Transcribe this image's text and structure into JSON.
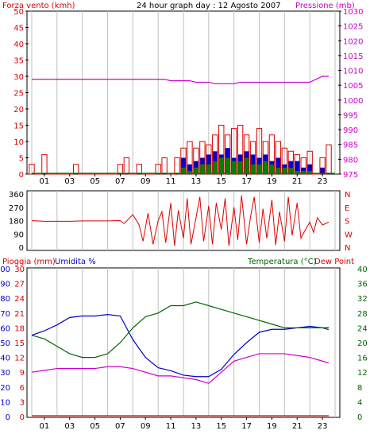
{
  "header": {
    "wind_title": "Forza vento (kmh)",
    "day_title": "24 hour graph day : 12 Agosto 2007",
    "pressure_title": "Pressione (mb)",
    "rain_title": "Pioggia (mm)",
    "humidity_title": "Umidita %",
    "temperature_title": "Temperatura (°C)",
    "dewpoint_title": "Dew Point"
  },
  "colors": {
    "frame": "#000000",
    "grid": "#c0c0c0",
    "wind": "#dd0000",
    "gust_blue": "#0000cc",
    "gust_green": "#008000",
    "pressure": "#cc00cc",
    "direction": "#dd0000",
    "rain": "#dd0000",
    "humidity": "#0000cc",
    "temperature": "#006600",
    "dewpoint": "#cc00cc"
  },
  "x_axis": {
    "tick_labels": [
      "01",
      "03",
      "05",
      "07",
      "09",
      "11",
      "13",
      "15",
      "17",
      "19",
      "21",
      "23"
    ]
  },
  "chart_data": [
    {
      "id": "wind_pressure",
      "type": "bar",
      "title": "24 hour graph day : 12 Agosto 2007",
      "ylabel": "Forza vento (kmh)",
      "y2label": "Pressione (mb)",
      "ylim": [
        0,
        50
      ],
      "y_ticks": [
        "0",
        "5",
        "10",
        "15",
        "20",
        "25",
        "30",
        "35",
        "40",
        "45",
        "50"
      ],
      "y2lim": [
        975,
        1030
      ],
      "y2_ticks": [
        "975",
        "980",
        "985",
        "990",
        "995",
        "1000",
        "1005",
        "1010",
        "1015",
        "1020",
        "1025",
        "1030"
      ],
      "hours": [
        0,
        0.5,
        1,
        1.5,
        2,
        2.5,
        3,
        3.5,
        4,
        4.5,
        5,
        5.5,
        6,
        6.5,
        7,
        7.5,
        8,
        8.5,
        9,
        9.5,
        10,
        10.5,
        11,
        11.5,
        12,
        12.5,
        13,
        13.5,
        14,
        14.5,
        15,
        15.5,
        16,
        16.5,
        17,
        17.5,
        18,
        18.5,
        19,
        19.5,
        20,
        20.5,
        21,
        21.5,
        22,
        22.5,
        23,
        23.5
      ],
      "series": [
        {
          "name": "Forza vento (kmh)",
          "values": [
            3,
            0,
            6,
            0,
            0,
            0,
            0,
            3,
            0,
            0,
            0,
            0,
            0,
            0,
            3,
            5,
            0,
            3,
            0,
            0,
            3,
            5,
            0,
            5,
            8,
            10,
            8,
            10,
            9,
            12,
            15,
            12,
            14,
            15,
            12,
            10,
            14,
            10,
            12,
            10,
            8,
            7,
            6,
            5,
            7,
            0,
            5,
            9
          ]
        },
        {
          "name": "Pressione (mb)",
          "values": [
            1007,
            1007,
            1007,
            1007,
            1007,
            1007,
            1007,
            1007,
            1007,
            1007,
            1007,
            1007,
            1007,
            1007,
            1007,
            1007,
            1007,
            1007,
            1007,
            1007,
            1007,
            1007,
            1006.5,
            1006.5,
            1006.5,
            1006.5,
            1006,
            1006,
            1006,
            1005.5,
            1005.5,
            1005.5,
            1005.5,
            1006,
            1006,
            1006,
            1006,
            1006,
            1006,
            1006,
            1006,
            1006,
            1006,
            1006,
            1006,
            1007,
            1008,
            1008
          ]
        }
      ],
      "gust_bands": [
        {
          "name": "blue",
          "values": [
            0,
            0,
            0,
            0,
            0,
            0,
            0,
            0,
            0,
            0,
            0,
            0,
            0,
            0,
            0,
            0,
            0,
            0,
            0,
            0,
            0,
            0,
            0,
            0,
            5,
            3,
            4,
            5,
            6,
            7,
            6,
            8,
            5,
            6,
            7,
            6,
            5,
            6,
            4,
            5,
            3,
            4,
            4,
            2,
            3,
            0,
            2,
            0
          ]
        },
        {
          "name": "green",
          "values": [
            0,
            0,
            0,
            0,
            0,
            0,
            0,
            0,
            0,
            0,
            0,
            0,
            0,
            0,
            0,
            0,
            0,
            0,
            0,
            0,
            0,
            0,
            0,
            0,
            2,
            1,
            2,
            3,
            3,
            4,
            5,
            5,
            4,
            4,
            5,
            3,
            3,
            4,
            3,
            2,
            2,
            2,
            1,
            1,
            1,
            0,
            0,
            0
          ]
        }
      ]
    },
    {
      "id": "direction",
      "type": "line",
      "ylabel": "",
      "ylim": [
        0,
        360
      ],
      "y_ticks": [
        "0",
        "90",
        "180",
        "270",
        "360"
      ],
      "y2_ticks": [
        "N",
        "E",
        "S",
        "W",
        "N"
      ],
      "series": [
        {
          "name": "direction",
          "x": [
            0,
            1,
            2,
            3,
            4,
            5,
            6,
            7,
            7.3,
            7.6,
            8,
            8.5,
            8.8,
            9.2,
            9.6,
            10,
            10.3,
            10.6,
            11,
            11.3,
            11.6,
            12,
            12.3,
            12.6,
            13,
            13.3,
            13.6,
            14,
            14.3,
            14.6,
            15,
            15.3,
            15.6,
            16,
            16.3,
            16.6,
            17,
            17.3,
            17.6,
            18,
            18.3,
            18.6,
            19,
            19.3,
            19.6,
            20,
            20.3,
            20.6,
            21,
            21.3,
            21.6,
            22,
            22.3,
            22.6,
            23,
            23.5
          ],
          "y": [
            180,
            175,
            175,
            175,
            178,
            178,
            178,
            180,
            160,
            185,
            220,
            150,
            40,
            230,
            20,
            180,
            240,
            30,
            300,
            10,
            250,
            60,
            330,
            20,
            200,
            340,
            40,
            280,
            20,
            300,
            120,
            330,
            10,
            270,
            50,
            350,
            20,
            200,
            340,
            30,
            260,
            60,
            320,
            15,
            240,
            40,
            340,
            80,
            300,
            60,
            110,
            170,
            100,
            200,
            150,
            170
          ]
        }
      ]
    },
    {
      "id": "rain_humidity_temp",
      "type": "line",
      "ylabel": "Pioggia (mm)",
      "ylim": [
        0,
        100
      ],
      "y_ticks_rain": [
        "0",
        "3",
        "6",
        "9",
        "12",
        "15",
        "18",
        "21",
        "24",
        "27",
        "30"
      ],
      "y_ticks_hum": [
        "0",
        "10",
        "20",
        "30",
        "40",
        "50",
        "60",
        "70",
        "80",
        "90",
        "100"
      ],
      "y2label": "Temperatura (°C)",
      "y2lim": [
        0,
        40
      ],
      "y2_ticks": [
        "0",
        "4",
        "8",
        "12",
        "16",
        "20",
        "24",
        "28",
        "32",
        "36",
        "40"
      ],
      "x": [
        0,
        1,
        2,
        3,
        4,
        5,
        6,
        7,
        8,
        9,
        10,
        11,
        12,
        13,
        14,
        15,
        16,
        17,
        18,
        19,
        20,
        21,
        22,
        23,
        23.5
      ],
      "series": [
        {
          "name": "Umidita %",
          "values": [
            55,
            58,
            62,
            67,
            68,
            68,
            69,
            68,
            52,
            40,
            33,
            31,
            28,
            27,
            27,
            32,
            42,
            50,
            57,
            59,
            59,
            60,
            61,
            60,
            60
          ]
        },
        {
          "name": "Temperatura (°C)",
          "values": [
            22,
            21,
            19,
            17,
            16,
            16,
            17,
            20,
            24,
            27,
            28,
            30,
            30,
            31,
            30,
            29,
            28,
            27,
            26,
            25,
            24,
            24,
            24,
            24,
            23.5
          ]
        },
        {
          "name": "Dew Point",
          "values": [
            12,
            12.5,
            13,
            13,
            13,
            13,
            13.5,
            13.5,
            13,
            12,
            11,
            11,
            10.5,
            10,
            9,
            12,
            15,
            16,
            17,
            17,
            17,
            16.5,
            16,
            15,
            14.5
          ]
        },
        {
          "name": "Pioggia (mm)",
          "values": [
            0,
            0,
            0,
            0,
            0,
            0,
            0,
            0,
            0,
            0,
            0,
            0,
            0,
            0,
            0,
            0,
            0,
            0,
            0,
            0,
            0,
            0,
            0,
            0,
            0
          ]
        }
      ]
    }
  ]
}
